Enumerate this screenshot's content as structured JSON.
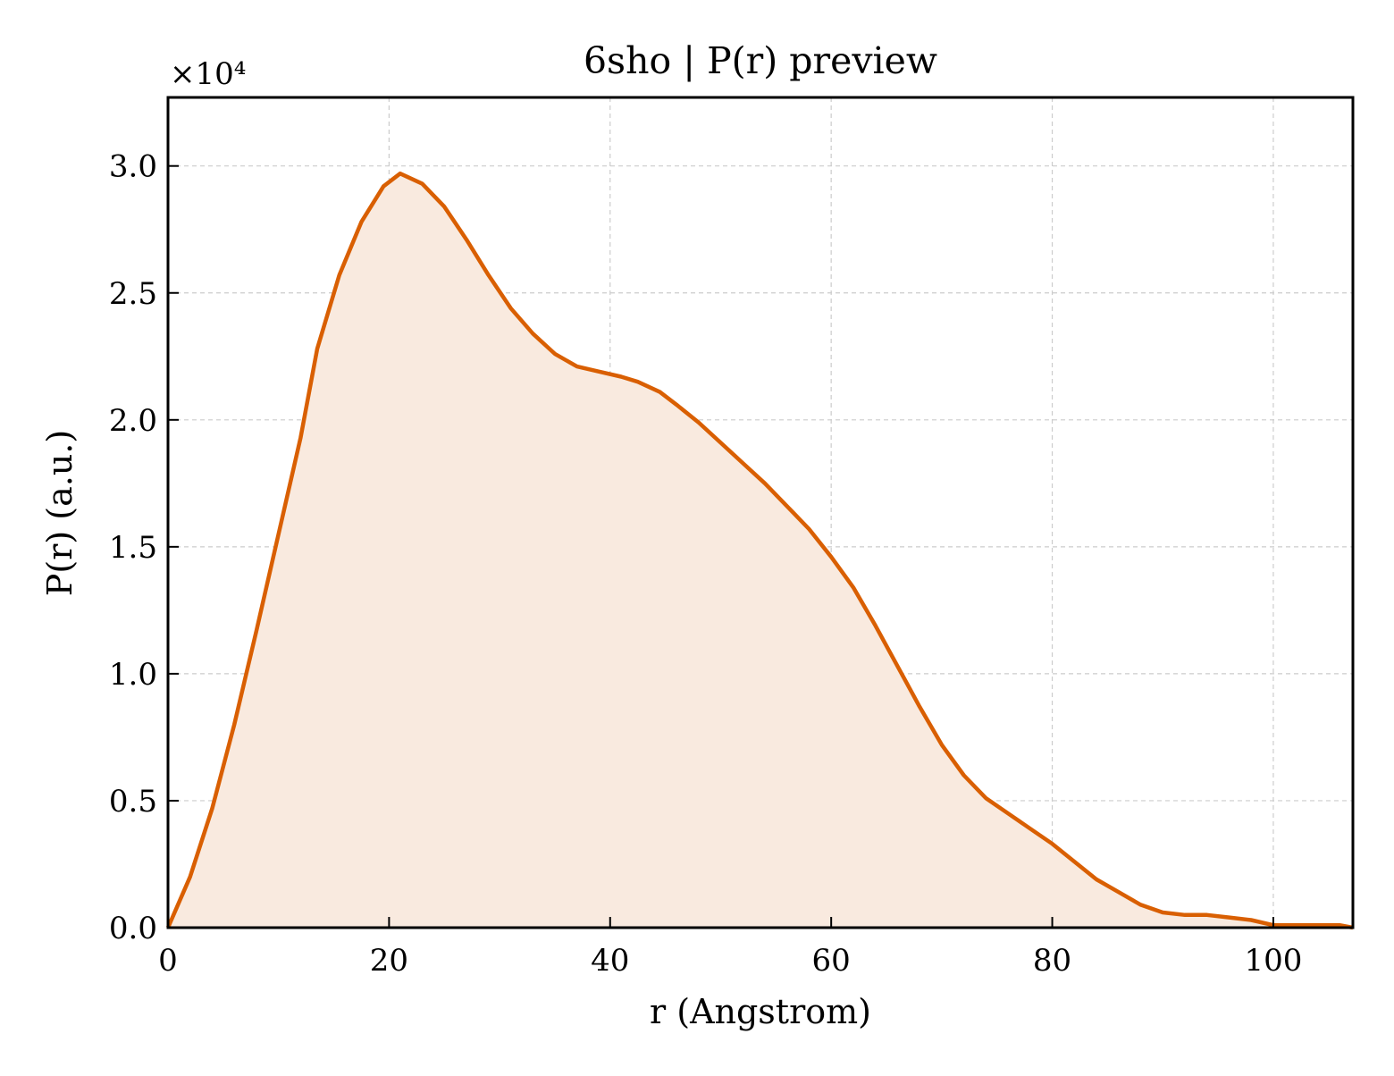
{
  "chart_data": {
    "type": "area",
    "title": "6sho | P(r) preview",
    "xlabel": "r (Angstrom)",
    "ylabel": "P(r) (a.u.)",
    "y_multiplier_label": "×10⁴",
    "xlim": [
      0,
      107.2
    ],
    "ylim": [
      0,
      3.27
    ],
    "xticks": [
      0,
      20,
      40,
      60,
      80,
      100
    ],
    "xtick_labels": [
      "0",
      "20",
      "40",
      "60",
      "80",
      "100"
    ],
    "yticks": [
      0,
      0.5,
      1,
      1.5,
      2,
      2.5,
      3
    ],
    "ytick_labels": [
      "0.0",
      "0.5",
      "1.0",
      "1.5",
      "2.0",
      "2.5",
      "3.0"
    ],
    "grid": true,
    "line_color": "#d95f02",
    "fill_color": "#f9eadf",
    "series": [
      {
        "x": [
          0,
          2,
          4,
          6,
          8,
          10,
          12,
          13.5,
          15.5,
          17.5,
          19.5,
          21,
          23,
          25,
          27,
          29,
          31,
          33,
          35,
          37,
          39,
          41,
          42.5,
          44.5,
          46,
          48,
          50,
          52,
          54,
          56,
          58,
          60,
          62,
          64,
          66,
          68,
          70,
          72,
          74,
          76,
          78,
          80,
          82,
          84,
          86,
          88,
          90,
          92,
          94,
          96,
          98,
          100,
          102,
          104,
          106,
          107.2
        ],
        "y": [
          0,
          0.2,
          0.47,
          0.8,
          1.17,
          1.55,
          1.93,
          2.28,
          2.57,
          2.78,
          2.92,
          2.97,
          2.93,
          2.84,
          2.71,
          2.57,
          2.44,
          2.34,
          2.26,
          2.21,
          2.19,
          2.17,
          2.15,
          2.11,
          2.06,
          1.99,
          1.91,
          1.83,
          1.75,
          1.66,
          1.57,
          1.46,
          1.34,
          1.19,
          1.03,
          0.87,
          0.72,
          0.6,
          0.51,
          0.45,
          0.39,
          0.33,
          0.26,
          0.19,
          0.14,
          0.09,
          0.06,
          0.05,
          0.05,
          0.04,
          0.03,
          0.01,
          0.01,
          0.01,
          0.01,
          0.0
        ]
      }
    ]
  }
}
